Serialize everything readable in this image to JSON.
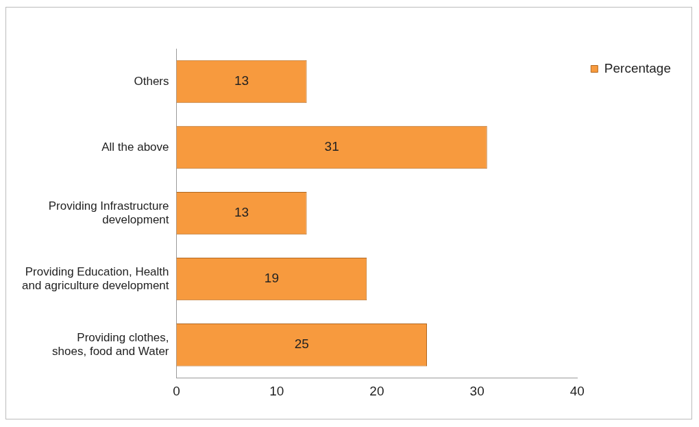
{
  "chart_data": {
    "type": "bar",
    "orientation": "horizontal",
    "categories": [
      "Others",
      "All the above",
      "Providing Infrastructure development",
      "Providing Education, Health and agriculture development",
      "Providing clothes, shoes, food and Water"
    ],
    "series": [
      {
        "name": "Percentage",
        "color": "#f79a3e",
        "values": [
          13,
          31,
          13,
          19,
          25
        ]
      }
    ],
    "xlim": [
      0,
      40
    ],
    "xticks": [
      0,
      10,
      20,
      30,
      40
    ],
    "grid": false,
    "legend": "top right",
    "data_labels": true
  }
}
